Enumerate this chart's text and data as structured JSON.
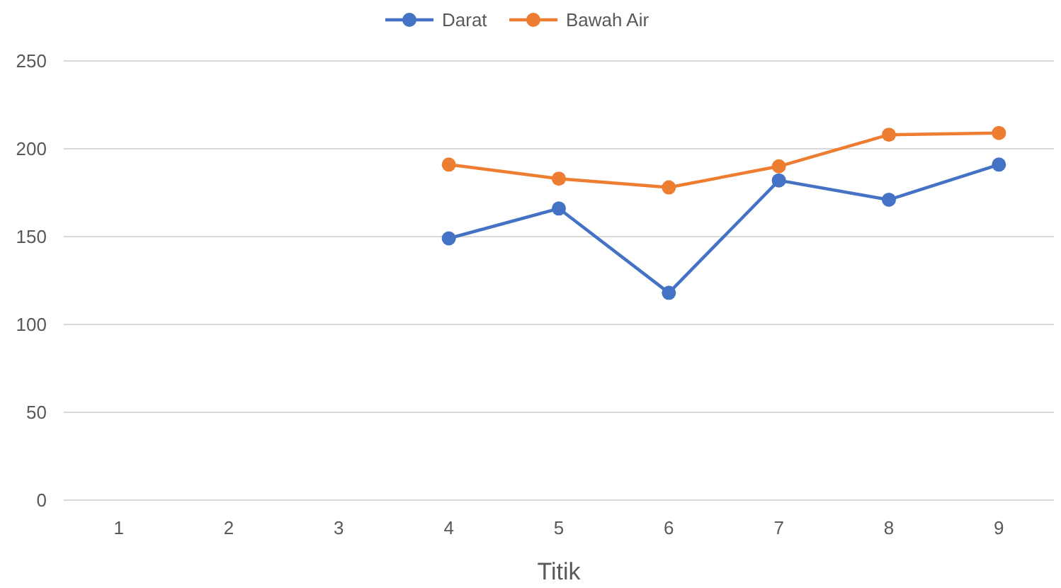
{
  "chart_data": {
    "type": "line",
    "xlabel": "Titik",
    "categories": [
      "1",
      "2",
      "3",
      "4",
      "5",
      "6",
      "7",
      "8",
      "9"
    ],
    "series": [
      {
        "name": "Darat",
        "color": "#4472c4",
        "values": [
          null,
          null,
          null,
          149,
          166,
          118,
          182,
          171,
          191
        ]
      },
      {
        "name": "Bawah Air",
        "color": "#ed7d31",
        "values": [
          null,
          null,
          null,
          191,
          183,
          178,
          190,
          208,
          209
        ]
      }
    ],
    "ylim": [
      0,
      250
    ],
    "yticks": [
      0,
      50,
      100,
      150,
      200,
      250
    ],
    "grid": "y",
    "legend": "top",
    "marker": "circle"
  }
}
